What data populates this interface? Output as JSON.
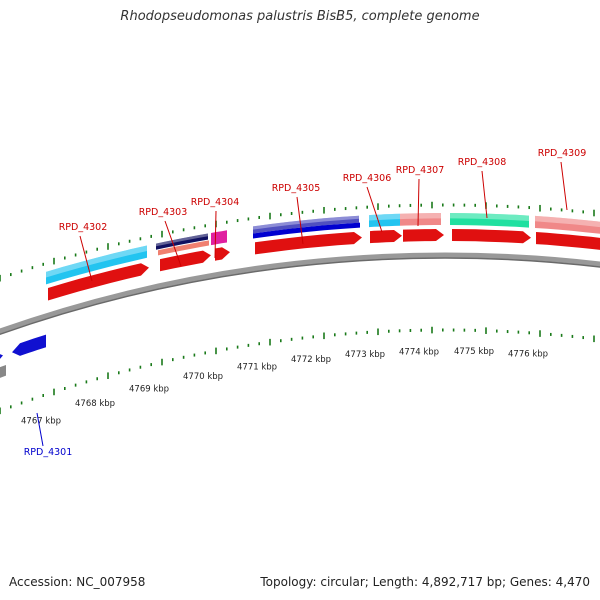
{
  "title": "Rhodopseudomonas palustris BisB5, complete genome",
  "footer": {
    "accession": "Accession: NC_007958",
    "summary": "Topology: circular; Length: 4,892,717 bp; Genes: 4,470"
  },
  "colors": {
    "backbone": "#8a8a8a",
    "tick": "#1a7a1a",
    "label_red": "#cc0000",
    "label_blue": "#0000cc",
    "kbp_text": "#222222"
  },
  "scale_labels": [
    "4767 kbp",
    "4768 kbp",
    "4769 kbp",
    "4770 kbp",
    "4771 kbp",
    "4772 kbp",
    "4773 kbp",
    "4774 kbp",
    "4775 kbp",
    "4776 kbp"
  ],
  "genes": [
    {
      "name": "RPD_4301",
      "color": "#0000cc"
    },
    {
      "name": "RPD_4302",
      "color": "#cc0000"
    },
    {
      "name": "RPD_4303",
      "color": "#cc0000"
    },
    {
      "name": "RPD_4304",
      "color": "#cc0000"
    },
    {
      "name": "RPD_4305",
      "color": "#cc0000"
    },
    {
      "name": "RPD_4306",
      "color": "#cc0000"
    },
    {
      "name": "RPD_4307",
      "color": "#cc0000"
    },
    {
      "name": "RPD_4308",
      "color": "#cc0000"
    },
    {
      "name": "RPD_4309",
      "color": "#cc0000"
    }
  ],
  "feature_colors": {
    "cds": "#e01010",
    "rev_cds": "#1010d0",
    "cyan": "#22c4f0",
    "navy": "#101060",
    "salmon": "#f08070",
    "magenta": "#e020a0",
    "purple": "#5050c0",
    "blue": "#0000d0",
    "pink": "#f08888",
    "green": "#20e0a0",
    "grey": "#888888"
  }
}
